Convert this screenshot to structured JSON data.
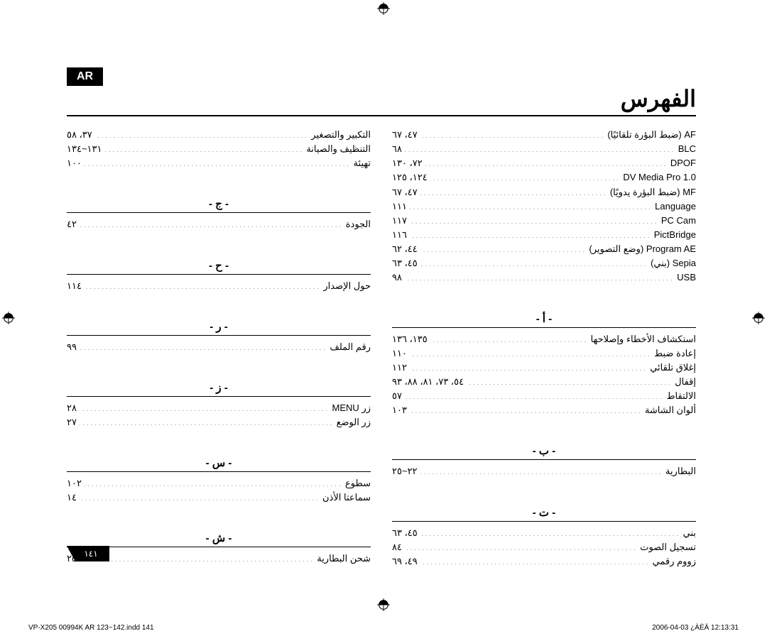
{
  "langBadge": "AR",
  "title": "الفهرس",
  "pageNumber": "١٤١",
  "footer": {
    "left": "VP-X205 00994K AR 123~142.indd   141",
    "right": "2006-04-03   ¿ÀÈÄ 12:13:31"
  },
  "rightCol": [
    {
      "type": "section-first",
      "entries": [
        {
          "label": "AF (ضبط البؤرة تلقائيًا)",
          "page": "٤٧، ٦٧"
        },
        {
          "label": "BLC",
          "page": "٦٨"
        },
        {
          "label": "DPOF",
          "page": "٧٢، ١٣٠"
        },
        {
          "label": "DV Media Pro 1.0",
          "page": "١٢٤، ١٢٥"
        },
        {
          "label": "MF (ضبط البؤرة يدويًا)",
          "page": "٤٧، ٦٧"
        },
        {
          "label": "Language",
          "page": "١١١"
        },
        {
          "label": "PC Cam",
          "page": "١١٧"
        },
        {
          "label": "PictBridge",
          "page": "١١٦"
        },
        {
          "label": "Program AE (وضع التصوير)",
          "page": "٤٤، ٦٢"
        },
        {
          "label": "Sepia (بني)",
          "page": "٤٥، ٦٣"
        },
        {
          "label": "USB",
          "page": "٩٨"
        }
      ]
    },
    {
      "head": "- أ -",
      "entries": [
        {
          "label": "استكشاف الأخطاء وإصلاحها",
          "page": "١٣٥، ١٣٦"
        },
        {
          "label": "إعادة ضبط",
          "page": "١١٠"
        },
        {
          "label": "إغلاق تلقائي",
          "page": "١١٢"
        },
        {
          "label": "إقفال",
          "page": "٥٤، ٧٣، ٨١، ٨٨، ٩٣"
        },
        {
          "label": "الالتقاط",
          "page": "٥٧"
        },
        {
          "label": "ألوان الشاشة",
          "page": "١٠٣"
        }
      ]
    },
    {
      "head": "- ب -",
      "entries": [
        {
          "label": "البطارية",
          "page": "٢٢~٢٥"
        }
      ]
    },
    {
      "head": "- ت -",
      "entries": [
        {
          "label": "بني",
          "page": "٤٥، ٦٣"
        },
        {
          "label": "تسجيل الصوت",
          "page": "٨٤"
        },
        {
          "label": "زووم رقمي",
          "page": "٤٩، ٦٩"
        }
      ]
    }
  ],
  "leftCol": [
    {
      "type": "section-first",
      "entries": [
        {
          "label": "التكبير والتصغير",
          "page": "٣٧، ٥٨"
        },
        {
          "label": "التنظيف والصيانة",
          "page": "١٣١~١٣٤"
        },
        {
          "label": "تهيئة",
          "page": "١٠٠"
        }
      ]
    },
    {
      "head": "- ج -",
      "entries": [
        {
          "label": "الجودة",
          "page": "٤٢"
        }
      ]
    },
    {
      "head": "- ح -",
      "entries": [
        {
          "label": "حول الإصدار",
          "page": "١١٤"
        }
      ]
    },
    {
      "head": "- ر -",
      "entries": [
        {
          "label": "رقم الملف",
          "page": "٩٩"
        }
      ]
    },
    {
      "head": "- ز -",
      "entries": [
        {
          "label": "زر MENU",
          "page": "٢٨"
        },
        {
          "label": "زر الوضع",
          "page": "٢٧"
        }
      ]
    },
    {
      "head": "- س -",
      "entries": [
        {
          "label": "سطوع",
          "page": "١٠٢"
        },
        {
          "label": "سماعتا الأذن",
          "page": "١٤"
        }
      ]
    },
    {
      "head": "- ش -",
      "entries": [
        {
          "label": "شحن البطارية",
          "page": "٢٥"
        }
      ]
    }
  ]
}
